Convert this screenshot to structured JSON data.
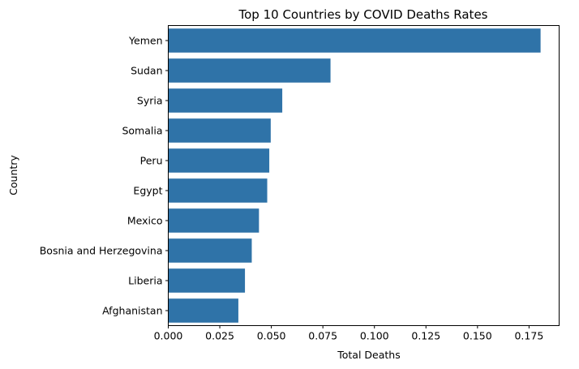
{
  "chart_data": {
    "type": "bar",
    "orientation": "horizontal",
    "title": "Top 10 Countries by  COVID Deaths Rates",
    "xlabel": "Total Deaths",
    "ylabel": "Country",
    "categories": [
      "Yemen",
      "Sudan",
      "Syria",
      "Somalia",
      "Peru",
      "Egypt",
      "Mexico",
      "Bosnia and Herzegovina",
      "Liberia",
      "Afghanistan"
    ],
    "values": [
      0.1806,
      0.0787,
      0.0553,
      0.0497,
      0.049,
      0.048,
      0.044,
      0.0405,
      0.0372,
      0.034
    ],
    "xlim": [
      0,
      0.1896
    ],
    "xticks": [
      0.0,
      0.025,
      0.05,
      0.075,
      0.1,
      0.125,
      0.15,
      0.175
    ],
    "xtick_labels": [
      "0.000",
      "0.025",
      "0.050",
      "0.075",
      "0.100",
      "0.125",
      "0.150",
      "0.175"
    ],
    "grid": false,
    "bar_color": "#2f73a8"
  }
}
